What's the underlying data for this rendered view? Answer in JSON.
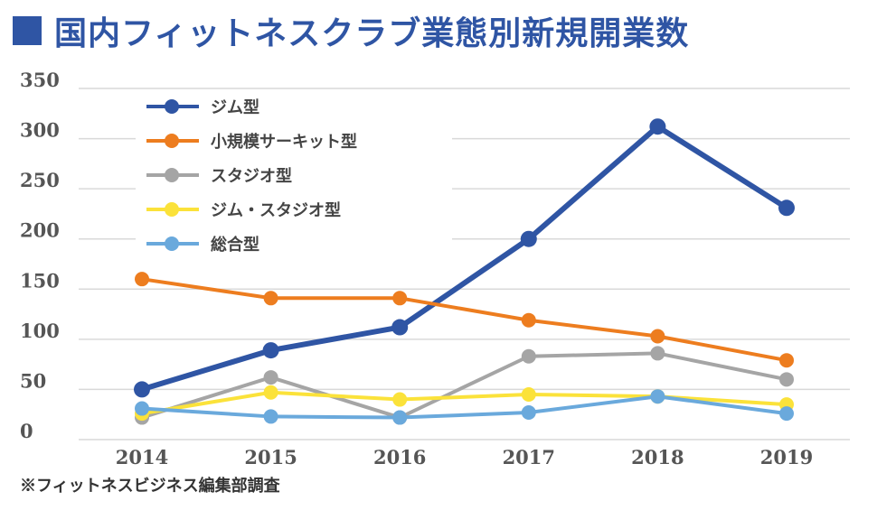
{
  "chart_data": {
    "type": "line",
    "title": "国内フィットネスクラブ業態別新規開業数",
    "categories": [
      "2014",
      "2015",
      "2016",
      "2017",
      "2018",
      "2019"
    ],
    "ylim": [
      0,
      350
    ],
    "yticks": [
      "0",
      "50",
      "100",
      "150",
      "200",
      "250",
      "300",
      "350"
    ],
    "grid": true,
    "legend": "top-left",
    "series": [
      {
        "name": "ジム型",
        "color": "#2f55a4",
        "values": [
          50,
          89,
          112,
          200,
          312,
          231
        ]
      },
      {
        "name": "小規模サーキット型",
        "color": "#ed7d1f",
        "values": [
          160,
          141,
          141,
          119,
          103,
          79
        ]
      },
      {
        "name": "スタジオ型",
        "color": "#a5a5a5",
        "values": [
          22,
          62,
          22,
          83,
          86,
          60
        ]
      },
      {
        "name": "ジム・スタジオ型",
        "color": "#fbe23a",
        "values": [
          26,
          47,
          40,
          45,
          43,
          35
        ]
      },
      {
        "name": "総合型",
        "color": "#6aa9dc",
        "values": [
          31,
          23,
          22,
          27,
          43,
          26
        ]
      }
    ]
  },
  "source": "※フィットネスビジネス編集部調査"
}
